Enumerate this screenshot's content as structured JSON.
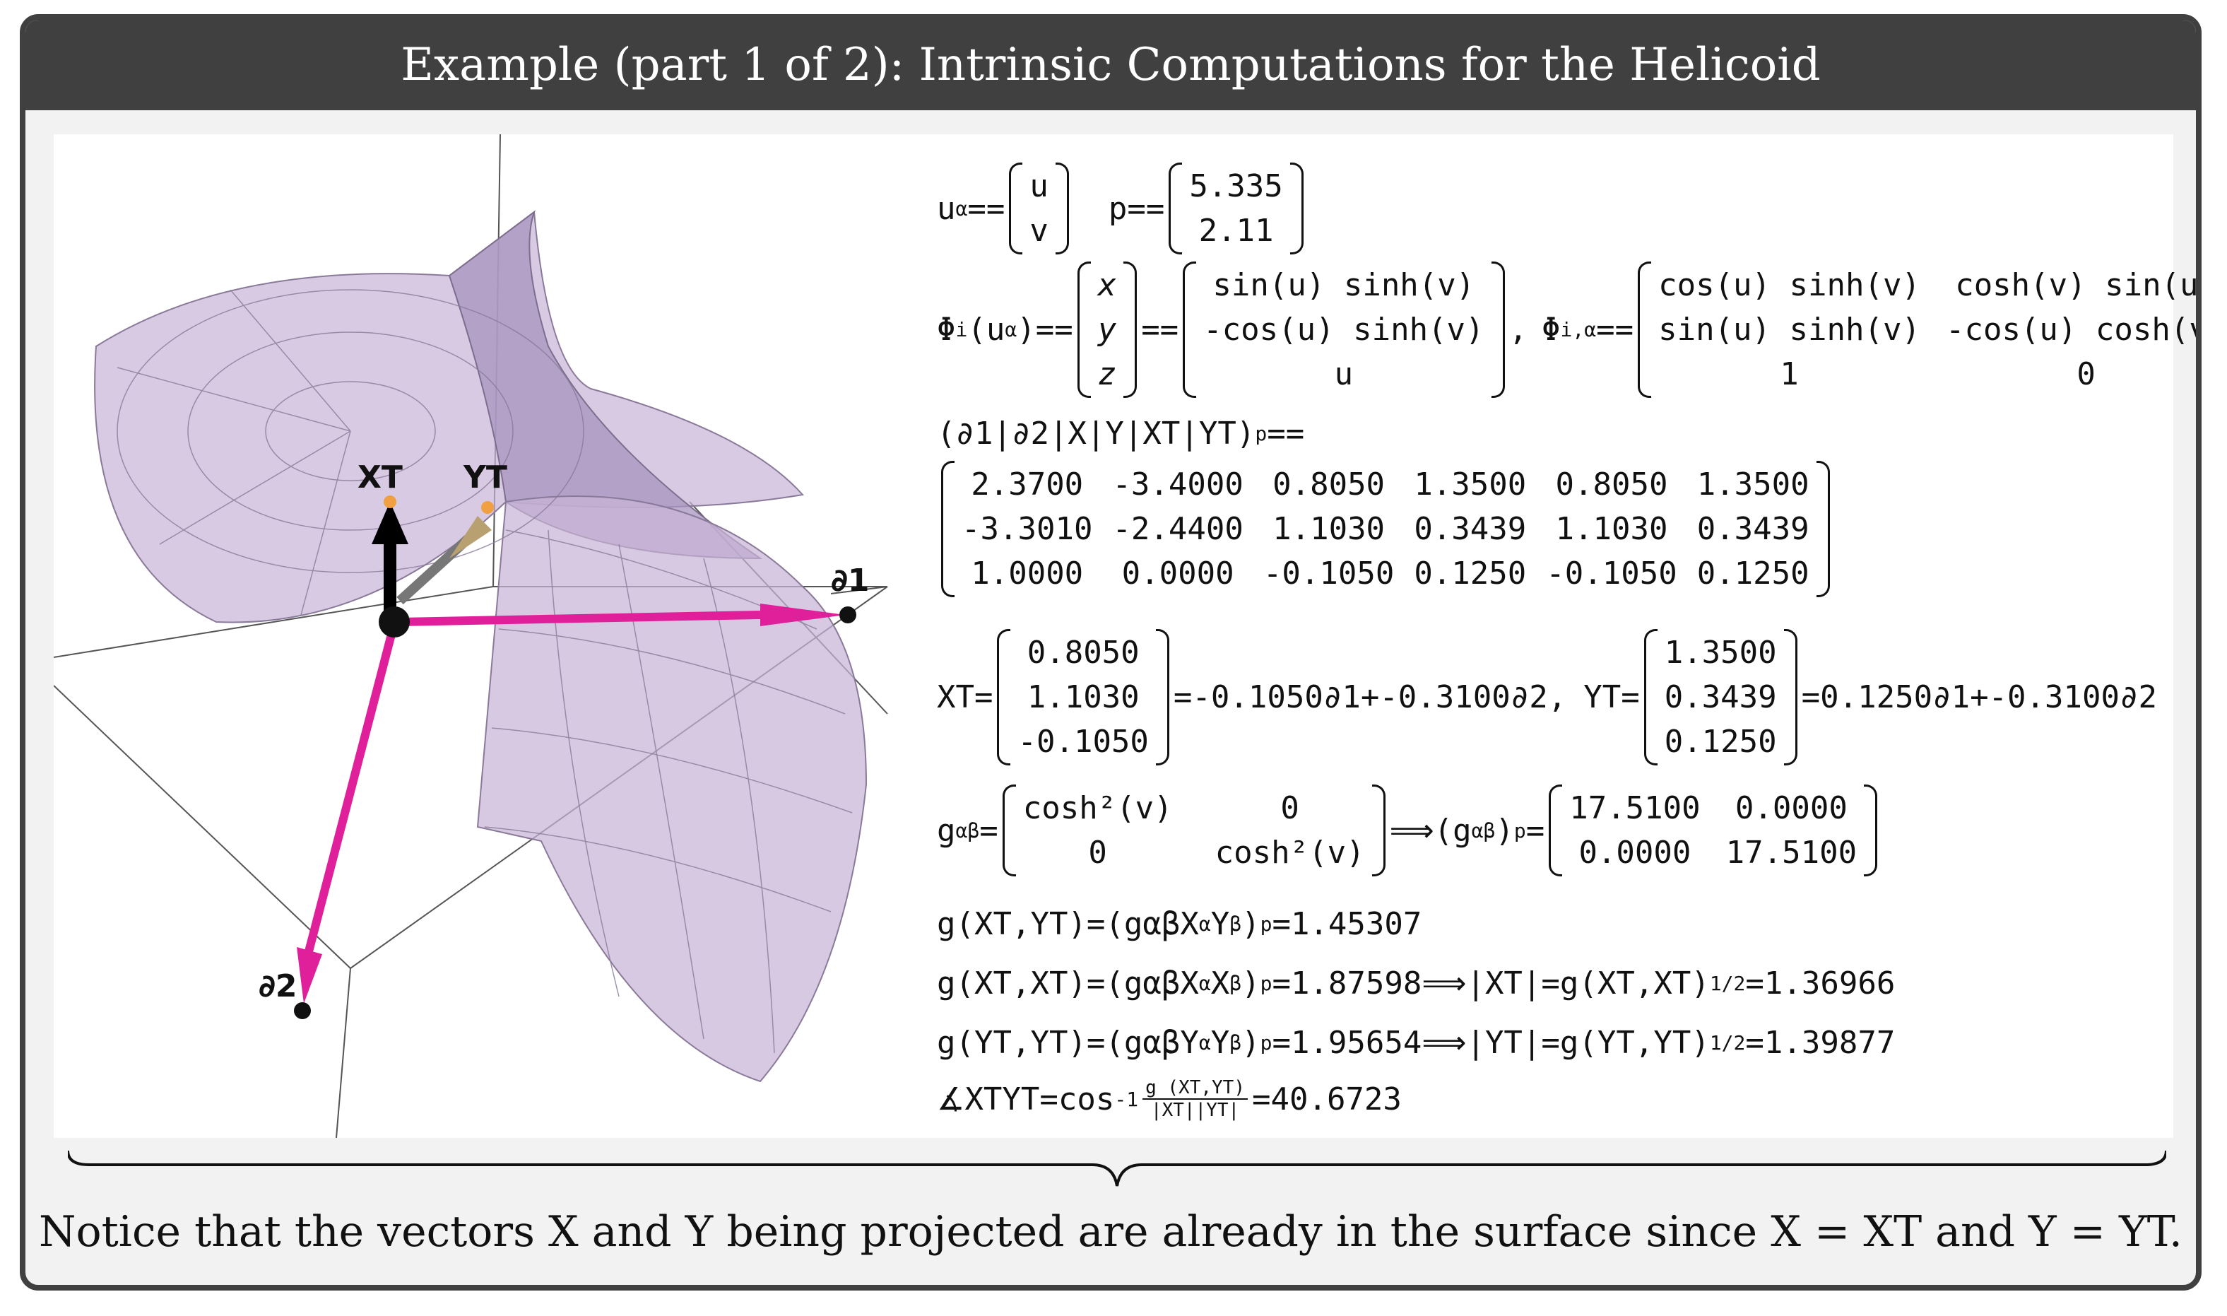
{
  "title": "Example (part 1 of 2): Intrinsic Computations for the Helicoid",
  "figure": {
    "labels": {
      "x_t": "XT",
      "y_t": "YT",
      "d1": "∂1",
      "d2": "∂2"
    },
    "colors": {
      "surface": "#c8b4d6",
      "arrow": "#e0209a",
      "axis": "#555555"
    }
  },
  "math": {
    "u_alpha": {
      "lhs": "u",
      "sup": "α",
      "eq": " == ",
      "cells": [
        "u",
        "v"
      ]
    },
    "p": {
      "lhs": "p",
      "eq": " == ",
      "cells": [
        "5.335",
        "2.11"
      ]
    },
    "phi": {
      "lhs": "Φ",
      "sup": "i",
      "arg": "(u",
      "arg_sup": "α",
      "arg_close": ")",
      "eq": " == ",
      "eq2": " == ",
      "xyz": [
        "x",
        "y",
        "z"
      ],
      "vals": [
        "sin(u) sinh(v)",
        "-cos(u) sinh(v)",
        "u"
      ],
      "comma": ",",
      "deriv_lhs": "Φ",
      "deriv_sup": "i",
      "deriv_sub": ",α",
      "deriv_eq": " == ",
      "deriv": [
        [
          "cos(u) sinh(v)",
          "cosh(v) sin(u)"
        ],
        [
          "sin(u) sinh(v)",
          "-cos(u) cosh(v)"
        ],
        [
          "1",
          "0"
        ]
      ]
    },
    "basis_label": "(∂1|∂2|X|Y|XT|YT)",
    "basis_sub": "p",
    "basis_eq": "==",
    "basis_matrix": [
      [
        "2.3700",
        "-3.4000",
        "0.8050",
        "1.3500",
        "0.8050",
        "1.3500"
      ],
      [
        "-3.3010",
        "-2.4400",
        "1.1030",
        "0.3439",
        "1.1030",
        "0.3439"
      ],
      [
        "1.0000",
        "0.0000",
        "-0.1050",
        "0.1250",
        "-0.1050",
        "0.1250"
      ]
    ],
    "xt": {
      "lhs": "XT=",
      "cells": [
        "0.8050",
        "1.1030",
        "-0.1050"
      ],
      "rhs": "=-0.1050∂1+-0.3100∂2,"
    },
    "yt": {
      "lhs": "YT=",
      "cells": [
        "1.3500",
        "0.3439",
        "0.1250"
      ],
      "rhs": "=0.1250∂1+-0.3100∂2"
    },
    "metric": {
      "lhs": "g",
      "lhs_sub": "αβ",
      "eq": "=",
      "cells": [
        [
          "cosh²(v)",
          "0"
        ],
        [
          "0",
          "cosh²(v)"
        ]
      ],
      "implies": " ⟹ ",
      "rhs_lhs": "(g",
      "rhs_sub": "αβ",
      "rhs_close": ")",
      "rhs_p": "p",
      "rhs_eq": "=",
      "rhs_cells": [
        [
          "17.5100",
          "0.0000"
        ],
        [
          "0.0000",
          "17.5100"
        ]
      ]
    },
    "g_xy": {
      "text": "g(XT,YT)=(gαβX",
      "sup1": "α",
      "mid": "Y",
      "sup2": "β",
      "close": ")",
      "sub": "p",
      "value": "=1.45307"
    },
    "g_xx": {
      "text": "g(XT,XT)=(gαβX",
      "sup1": "α",
      "mid": "X",
      "sup2": "β",
      "close": ")",
      "sub": "p",
      "value": "=1.87598",
      "implies": " ⟹ ",
      "norm": "|XT|=g(XT,XT)",
      "pow": "1/2",
      "norm_value": "=1.36966"
    },
    "g_yy": {
      "text": "g(YT,YT)=(gαβY",
      "sup1": "α",
      "mid": "Y",
      "sup2": "β",
      "close": ")",
      "sub": "p",
      "value": "=1.95654",
      "implies": " ⟹ ",
      "norm": "|YT|=g(YT,YT)",
      "pow": "1/2",
      "norm_value": "=1.39877"
    },
    "angle": {
      "lhs": "∡XTYT=cos",
      "sup": "-1",
      "num": "g (XT,YT)",
      "den": "|XT||YT|",
      "value": "=40.6723"
    }
  },
  "caption": "Notice that the vectors X and Y being projected are already in the surface since X = XT and Y = YT."
}
